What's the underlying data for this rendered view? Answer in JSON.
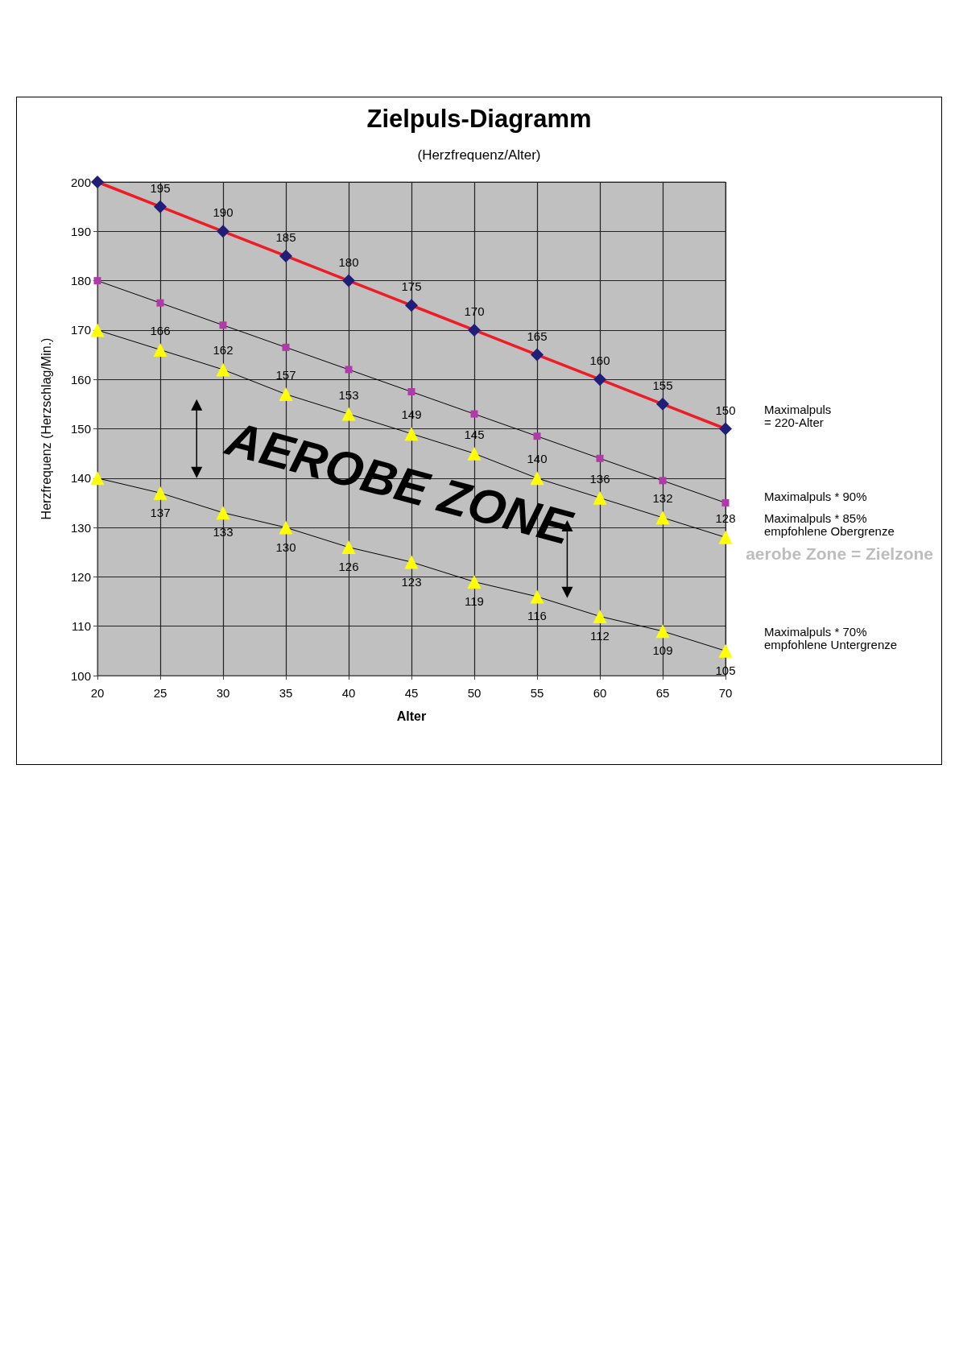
{
  "chart_data": {
    "type": "line",
    "title": "Zielpuls-Diagramm",
    "subtitle": "(Herzfrequenz/Alter)",
    "xlabel": "Alter",
    "ylabel": "Herzfrequenz (Herzschlag/Min.)",
    "x": [
      20,
      25,
      30,
      35,
      40,
      45,
      50,
      55,
      60,
      65,
      70
    ],
    "series": [
      {
        "name": "Maximalpuls\n= 220-Alter",
        "color": "#1f1f7a",
        "marker": "diamond",
        "values": [
          200,
          195,
          190,
          185,
          180,
          175,
          170,
          165,
          160,
          155,
          150
        ],
        "value_labels": [
          null,
          "195",
          "190",
          "185",
          "180",
          "175",
          "170",
          "165",
          "160",
          "155",
          "150"
        ]
      },
      {
        "name": "Maximalpuls * 90%",
        "color": "#b03aa8",
        "marker": "square",
        "values": [
          180,
          175.5,
          171,
          166.5,
          162,
          157.5,
          153,
          148.5,
          144,
          139.5,
          135
        ]
      },
      {
        "name": "Maximalpuls * 85%\nempfohlene Obergrenze",
        "color": "#ffff00",
        "marker": "triangle",
        "values": [
          170,
          166,
          162,
          157,
          153,
          149,
          145,
          140,
          136,
          132,
          128
        ],
        "value_labels": [
          null,
          "166",
          "162",
          "157",
          "153",
          "149",
          "145",
          "140",
          "136",
          "132",
          "128"
        ]
      },
      {
        "name": "Maximalpuls * 70%\nempfohlene Untergrenze",
        "color": "#ffff00",
        "marker": "triangle",
        "values": [
          140,
          137,
          133,
          130,
          126,
          123,
          119,
          116,
          112,
          109,
          105
        ],
        "value_labels": [
          null,
          "137",
          "133",
          "130",
          "126",
          "123",
          "119",
          "116",
          "112",
          "109",
          "105"
        ]
      }
    ],
    "xlim": [
      20,
      70
    ],
    "xticks": [
      20,
      25,
      30,
      35,
      40,
      45,
      50,
      55,
      60,
      65,
      70
    ],
    "ylim": [
      100,
      200
    ],
    "yticks": [
      100,
      110,
      120,
      130,
      140,
      150,
      160,
      170,
      180,
      190,
      200
    ],
    "grid": true,
    "legend": false,
    "annotations": [
      "aerobe Zone = Zielzone",
      "AEROBE ZONE"
    ]
  }
}
